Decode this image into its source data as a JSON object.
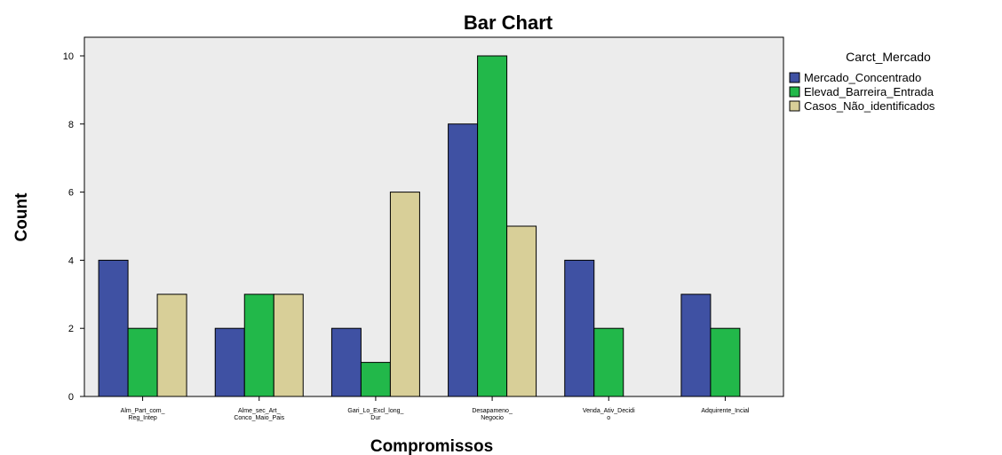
{
  "chart_data": {
    "type": "bar",
    "title": "Bar Chart",
    "xlabel": "Compromissos",
    "ylabel": "Count",
    "ylim": [
      0,
      10
    ],
    "yticks": [
      "0",
      "2",
      "4",
      "6",
      "8",
      "10"
    ],
    "grid": false,
    "legend_title": "Carct_Mercado",
    "legend_position": "right",
    "categories": [
      [
        "Alm_Part_com_",
        "Reg_Intep"
      ],
      [
        "Alme_sec_Art_",
        "Conco_Maio_Pais"
      ],
      [
        "Gari_Lo_Excl_long_",
        "Dur"
      ],
      [
        "Desapameno_",
        "Negocio"
      ],
      [
        "Venda_Ativ_Decidi",
        "o"
      ],
      [
        "Adquirente_Incial"
      ]
    ],
    "series": [
      {
        "name": "Mercado_Concentrado",
        "color": "#3f51a3",
        "values": [
          4,
          2,
          2,
          8,
          4,
          3
        ]
      },
      {
        "name": "Elevad_Barreira_Entrada",
        "color": "#22b84a",
        "values": [
          2,
          3,
          1,
          10,
          2,
          2
        ]
      },
      {
        "name": "Casos_Não_identificados",
        "color": "#d8cf98",
        "values": [
          3,
          3,
          6,
          5,
          0,
          0
        ]
      }
    ],
    "colors": {
      "plot_background": "#ececec",
      "page_background": "#ffffff"
    }
  }
}
